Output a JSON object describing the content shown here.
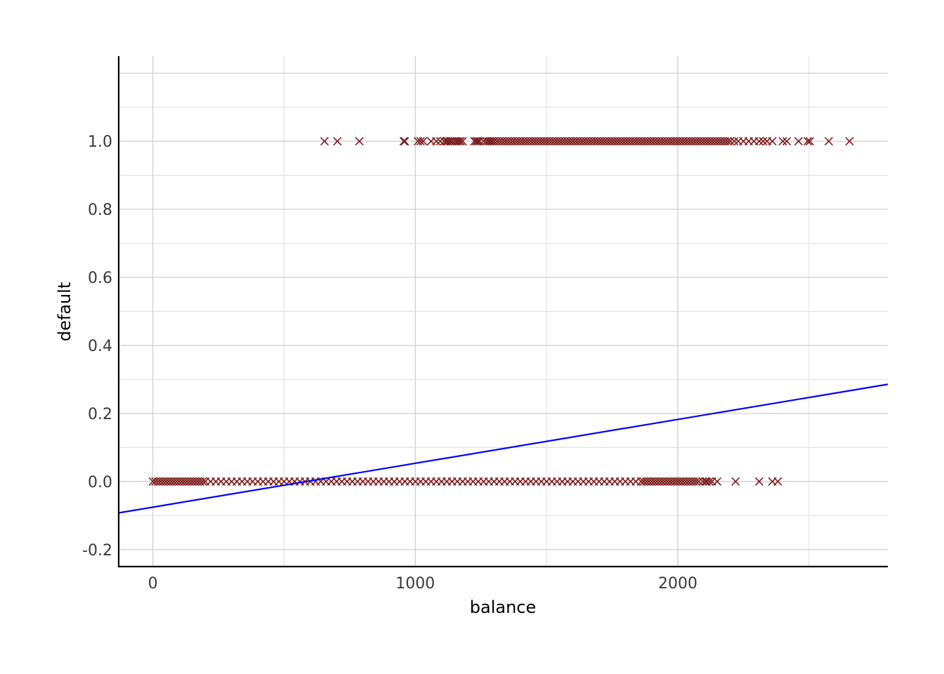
{
  "chart_data": {
    "type": "scatter",
    "title": "",
    "xlabel": "balance",
    "ylabel": "default",
    "xlim": [
      -130,
      2800
    ],
    "ylim": [
      -0.25,
      1.25
    ],
    "x_ticks": [
      {
        "value": 0,
        "label": "0"
      },
      {
        "value": 1000,
        "label": "1000"
      },
      {
        "value": 2000,
        "label": "2000"
      }
    ],
    "y_ticks": [
      {
        "value": -0.2,
        "label": "-0.2"
      },
      {
        "value": 0.0,
        "label": "0.0"
      },
      {
        "value": 0.2,
        "label": "0.2"
      },
      {
        "value": 0.4,
        "label": "0.4"
      },
      {
        "value": 0.6,
        "label": "0.6"
      },
      {
        "value": 0.8,
        "label": "0.8"
      },
      {
        "value": 1.0,
        "label": "1.0"
      }
    ],
    "grid": true,
    "point_color": "#7b1c1c",
    "line_color": "#0000ff",
    "marker": "x",
    "series": [
      {
        "kind": "points",
        "y": 1,
        "x": [
          654,
          703,
          787,
          956,
          960,
          1010,
          1020,
          1030,
          1060,
          1080,
          1095,
          1110,
          1118,
          1125,
          1133,
          1140,
          1150,
          1158,
          1165,
          1172,
          1180,
          1225,
          1232,
          1238,
          1245,
          1260,
          1270,
          1278,
          1285,
          1292,
          1300,
          1310,
          1320,
          1330,
          1340,
          1350,
          1360,
          1370,
          1380,
          1390,
          1400,
          1410,
          1420,
          1430,
          1440,
          1450,
          1460,
          1470,
          1480,
          1490,
          1500,
          1510,
          1520,
          1530,
          1540,
          1550,
          1560,
          1570,
          1580,
          1590,
          1600,
          1610,
          1620,
          1630,
          1640,
          1650,
          1660,
          1670,
          1680,
          1690,
          1700,
          1710,
          1720,
          1730,
          1740,
          1750,
          1760,
          1770,
          1780,
          1790,
          1800,
          1810,
          1820,
          1830,
          1840,
          1850,
          1860,
          1870,
          1880,
          1890,
          1900,
          1910,
          1920,
          1930,
          1940,
          1950,
          1960,
          1970,
          1980,
          1990,
          2000,
          2010,
          2020,
          2030,
          2040,
          2050,
          2060,
          2070,
          2080,
          2090,
          2100,
          2110,
          2120,
          2130,
          2140,
          2150,
          2160,
          2170,
          2180,
          2190,
          2200,
          2215,
          2230,
          2250,
          2270,
          2290,
          2310,
          2325,
          2340,
          2360,
          2400,
          2415,
          2460,
          2495,
          2503,
          2575,
          2654
        ]
      },
      {
        "kind": "points",
        "y": 0,
        "x": [
          0,
          10,
          20,
          30,
          40,
          50,
          60,
          70,
          80,
          90,
          100,
          110,
          120,
          130,
          140,
          150,
          160,
          170,
          180,
          190,
          200,
          220,
          240,
          260,
          280,
          300,
          320,
          340,
          360,
          380,
          400,
          420,
          440,
          460,
          480,
          500,
          520,
          540,
          560,
          580,
          600,
          620,
          640,
          660,
          680,
          700,
          720,
          740,
          760,
          780,
          800,
          820,
          840,
          860,
          880,
          900,
          920,
          940,
          960,
          980,
          1000,
          1020,
          1040,
          1060,
          1080,
          1100,
          1120,
          1140,
          1160,
          1180,
          1200,
          1220,
          1240,
          1260,
          1280,
          1300,
          1320,
          1340,
          1360,
          1380,
          1400,
          1420,
          1440,
          1460,
          1480,
          1500,
          1520,
          1540,
          1560,
          1580,
          1600,
          1620,
          1640,
          1660,
          1680,
          1700,
          1720,
          1740,
          1760,
          1780,
          1800,
          1820,
          1840,
          1860,
          1870,
          1880,
          1890,
          1900,
          1910,
          1920,
          1930,
          1940,
          1950,
          1960,
          1970,
          1980,
          1990,
          2000,
          2010,
          2020,
          2030,
          2040,
          2050,
          2060,
          2070,
          2080,
          2095,
          2105,
          2110,
          2120,
          2130,
          2150,
          2220,
          2310,
          2360,
          2381
        ]
      },
      {
        "kind": "line",
        "x": [
          -130,
          2800
        ],
        "y": [
          -0.0922,
          0.2857
        ]
      }
    ]
  }
}
